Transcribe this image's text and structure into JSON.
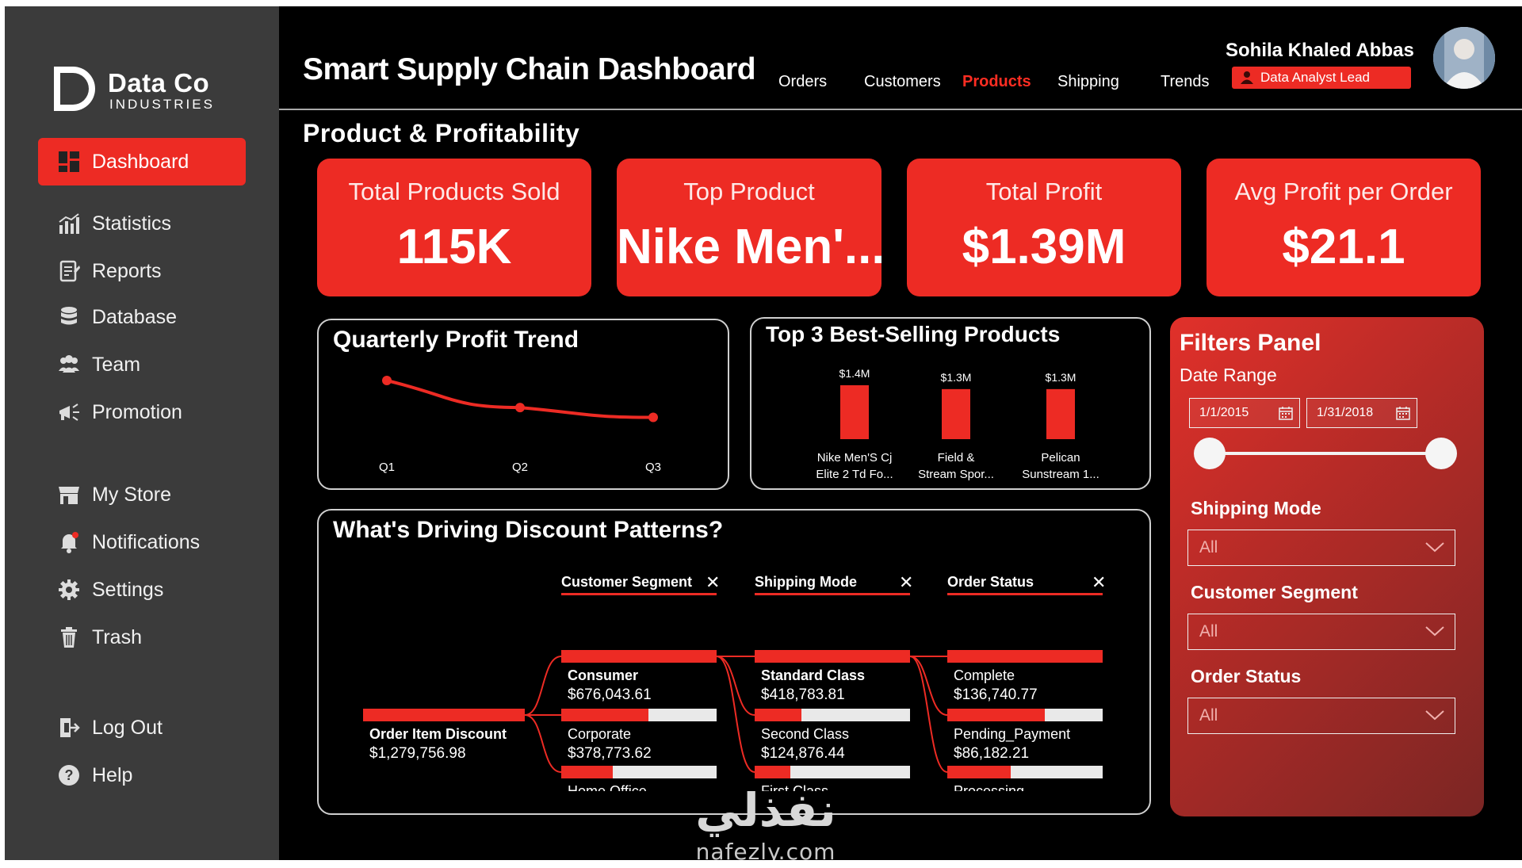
{
  "brand": {
    "line1": "Data Co",
    "line2": "INDUSTRIES"
  },
  "sidebar": {
    "items": [
      {
        "label": "Dashboard",
        "icon": "dashboard-icon",
        "active": true
      },
      {
        "label": "Statistics",
        "icon": "statistics-icon"
      },
      {
        "label": "Reports",
        "icon": "reports-icon"
      },
      {
        "label": "Database",
        "icon": "database-icon"
      },
      {
        "label": "Team",
        "icon": "team-icon"
      },
      {
        "label": "Promotion",
        "icon": "megaphone-icon"
      },
      {
        "label": "My Store",
        "icon": "store-icon"
      },
      {
        "label": "Notifications",
        "icon": "bell-icon"
      },
      {
        "label": "Settings",
        "icon": "gear-icon"
      },
      {
        "label": "Trash",
        "icon": "trash-icon"
      },
      {
        "label": "Log Out",
        "icon": "logout-icon"
      },
      {
        "label": "Help",
        "icon": "help-icon"
      }
    ]
  },
  "header": {
    "title": "Smart Supply Chain Dashboard",
    "tabs": [
      {
        "label": "Orders"
      },
      {
        "label": "Customers"
      },
      {
        "label": "Products",
        "active": true
      },
      {
        "label": "Shipping"
      },
      {
        "label": "Trends"
      }
    ],
    "user": {
      "name": "Sohila Khaled Abbas",
      "role": "Data Analyst Lead"
    }
  },
  "section_title": "Product & Profitability",
  "kpis": [
    {
      "label": "Total Products Sold",
      "value": "115K"
    },
    {
      "label": "Top Product",
      "value": "Nike Men'..."
    },
    {
      "label": "Total Profit",
      "value": "$1.39M"
    },
    {
      "label": "Avg Profit per Order",
      "value": "$21.1"
    }
  ],
  "chart_data": [
    {
      "type": "line",
      "title": "Quarterly Profit Trend",
      "categories": [
        "Q1",
        "Q2",
        "Q3"
      ],
      "values": [
        1.0,
        0.45,
        0.25
      ],
      "grid": false,
      "color": "#ed2b24"
    },
    {
      "type": "bar",
      "title": "Top 3 Best-Selling Products",
      "categories": [
        [
          "Nike Men'S Cj",
          "Elite 2 Td Fo..."
        ],
        [
          "Field &",
          "Stream Spor..."
        ],
        [
          "Pelican",
          "Sunstream 1..."
        ]
      ],
      "values": [
        1.4,
        1.3,
        1.3
      ],
      "data_labels": [
        "$1.4M",
        "$1.3M",
        "$1.3M"
      ],
      "color": "#ed2b24"
    }
  ],
  "decomposition": {
    "title": "What's Driving Discount Patterns?",
    "levels": [
      "Customer Segment",
      "Shipping Mode",
      "Order Status"
    ],
    "root": {
      "label": "Order Item Discount",
      "value": "$1,279,756.98"
    },
    "columns": [
      [
        {
          "label": "Consumer",
          "value": "$676,043.61",
          "share": 1.0,
          "selected": true
        },
        {
          "label": "Corporate",
          "value": "$378,773.62",
          "share": 0.56
        },
        {
          "label": "Home Office",
          "value": "",
          "share": 0.33
        }
      ],
      [
        {
          "label": "Standard Class",
          "value": "$418,783.81",
          "share": 1.0,
          "selected": true
        },
        {
          "label": "Second Class",
          "value": "$124,876.44",
          "share": 0.3
        },
        {
          "label": "First Class",
          "value": "",
          "share": 0.23
        }
      ],
      [
        {
          "label": "Complete",
          "value": "$136,740.77",
          "share": 1.0
        },
        {
          "label": "Pending_Payment",
          "value": "$86,182.21",
          "share": 0.63
        },
        {
          "label": "Processing",
          "value": "",
          "share": 0.41
        }
      ]
    ]
  },
  "filters": {
    "title": "Filters Panel",
    "date_range_label": "Date Range",
    "start_date": "1/1/2015",
    "end_date": "1/31/2018",
    "shipping_mode": {
      "label": "Shipping Mode",
      "value": "All"
    },
    "customer_segment": {
      "label": "Customer Segment",
      "value": "All"
    },
    "order_status": {
      "label": "Order Status",
      "value": "All"
    }
  },
  "watermark": {
    "arabic": "نفذلي",
    "latin": "nafezly.com"
  },
  "colors": {
    "accent": "#ed2b24",
    "sidebar": "#3b3b3b",
    "background": "#000000"
  }
}
